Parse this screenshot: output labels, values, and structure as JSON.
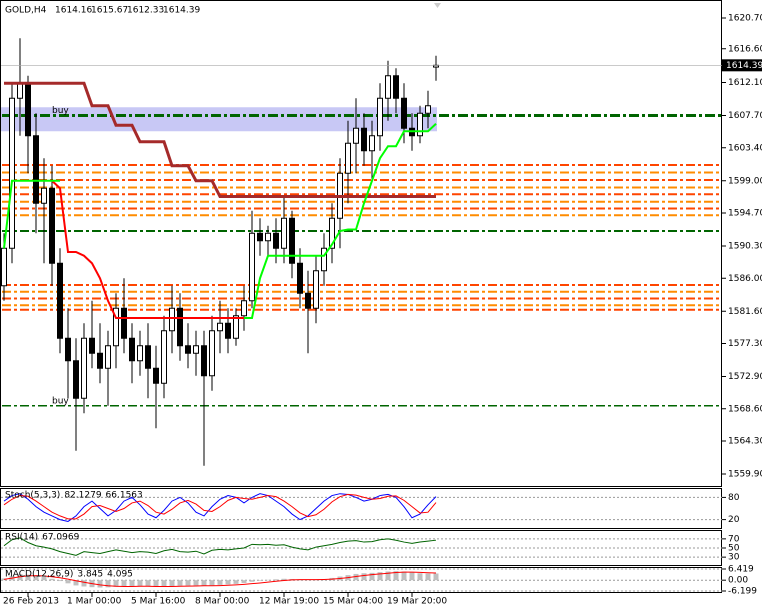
{
  "chart_data": [
    {
      "type": "candlestick",
      "symbol": "GOLD,H4",
      "categories": [
        null,
        null,
        null,
        "26 Feb 2013",
        null,
        null,
        null,
        null,
        null,
        null,
        null,
        "1 Mar 00:00",
        null,
        null,
        null,
        null,
        null,
        null,
        null,
        "5 Mar 16:00",
        null,
        null,
        null,
        null,
        null,
        null,
        null,
        "8 Mar 00:00",
        null,
        null,
        null,
        null,
        null,
        null,
        null,
        "12 Mar 19:00",
        null,
        null,
        null,
        null,
        null,
        null,
        null,
        "15 Mar 04:00",
        null,
        null,
        null,
        null,
        null,
        null,
        null,
        "19 Mar 20:00",
        null,
        null,
        null
      ],
      "open": [
        1585,
        1590,
        1610,
        1612,
        1605,
        1596,
        1598,
        1588,
        1578,
        1575,
        1570,
        1578,
        1576,
        1574,
        1577,
        1582,
        1578,
        1575,
        1577,
        1574,
        1572,
        1579,
        1582,
        1577,
        1576,
        1577,
        1573,
        1579,
        1580,
        1578,
        1581,
        1583,
        1592,
        1591,
        1592,
        1590,
        1594,
        1588,
        1584,
        1582,
        1587,
        1590,
        1594,
        1600,
        1604,
        1606,
        1603,
        1605,
        1610,
        1613,
        1610,
        1606,
        1605,
        1608,
        1614.16
      ],
      "high": [
        1592,
        1612,
        1618,
        1613,
        1608,
        1602,
        1601,
        1590,
        1582,
        1578,
        1580,
        1583,
        1580,
        1579,
        1584,
        1586,
        1580,
        1579,
        1580,
        1577,
        1581,
        1585,
        1584,
        1580,
        1579,
        1579,
        1581,
        1583,
        1582,
        1582,
        1585,
        1595,
        1594,
        1593,
        1594,
        1597,
        1595,
        1590,
        1587,
        1589,
        1592,
        1596,
        1602,
        1607,
        1610,
        1608,
        1607,
        1612,
        1615,
        1614,
        1612,
        1608,
        1609,
        1611,
        1615.67
      ],
      "low": [
        1583,
        1588,
        1605,
        1600,
        1592,
        1588,
        1585,
        1576,
        1570,
        1563,
        1568,
        1574,
        1572,
        1569,
        1574,
        1576,
        1572,
        1573,
        1570,
        1566,
        1570,
        1576,
        1575,
        1574,
        1573,
        1561,
        1571,
        1576,
        1576,
        1577,
        1579,
        1582,
        1589,
        1589,
        1588,
        1588,
        1586,
        1582,
        1576,
        1580,
        1585,
        1588,
        1590,
        1596,
        1600,
        1601,
        1599,
        1603,
        1607,
        1608,
        1604,
        1603,
        1604,
        1606,
        1612.33
      ],
      "close": [
        1590,
        1610,
        1612,
        1605,
        1596,
        1598,
        1588,
        1578,
        1575,
        1570,
        1578,
        1576,
        1574,
        1577,
        1582,
        1578,
        1575,
        1577,
        1574,
        1572,
        1579,
        1582,
        1577,
        1576,
        1577,
        1573,
        1579,
        1580,
        1578,
        1581,
        1583,
        1592,
        1591,
        1592,
        1590,
        1594,
        1588,
        1584,
        1582,
        1587,
        1590,
        1594,
        1600,
        1604,
        1606,
        1603,
        1605,
        1610,
        1613,
        1610,
        1606,
        1605,
        1608,
        1609,
        1614.39
      ],
      "series": [
        {
          "color": "#a52a2a",
          "values": [
            1612,
            1612,
            1612,
            1612,
            1612,
            1612,
            1612,
            1612,
            1612,
            1612,
            1612,
            1609,
            1609,
            1609,
            1606.4,
            1606.4,
            1606.4,
            1604.2,
            1604.2,
            1604.2,
            1604.2,
            1601,
            1601,
            1601,
            1599,
            1599,
            1599,
            1596.9,
            1596.9,
            1596.9,
            1596.9,
            1596.9,
            1596.9,
            1596.9,
            1596.9,
            1596.9,
            1596.9,
            1596.9,
            1596.9,
            1596.9,
            1596.9,
            1596.9,
            1596.9,
            1596.9,
            1596.9,
            1596.9,
            1596.9,
            1596.9,
            1596.9,
            1596.9,
            1596.9,
            1596.9,
            1596.9,
            1596.9,
            1596.9
          ]
        },
        {
          "color": "#ff0000",
          "values": [
            null,
            null,
            null,
            null,
            null,
            null,
            1599,
            1598,
            1589.5,
            1589.5,
            1589,
            1588,
            1586,
            1583,
            1580.7,
            1580.7,
            1580.7,
            1580.7,
            1580.7,
            1580.7,
            1580.7,
            1580.7,
            1580.7,
            1580.7,
            1580.7,
            1580.7,
            1580.7,
            1580.7,
            1580.7,
            1580.7,
            1580.7,
            1580.7,
            null,
            null,
            null,
            null,
            null,
            null,
            null,
            null,
            null,
            null,
            null,
            null,
            null,
            null,
            null,
            null,
            null,
            null,
            null,
            null,
            null,
            null,
            null
          ]
        },
        {
          "color": "#00ff00",
          "values": [
            1590,
            1599,
            1599,
            1599,
            1599,
            1599,
            1599,
            1599,
            null,
            null,
            null,
            null,
            null,
            null,
            null,
            null,
            null,
            null,
            null,
            null,
            null,
            null,
            null,
            null,
            null,
            null,
            null,
            null,
            null,
            null,
            1580.7,
            1580.7,
            1586,
            1589,
            1589,
            1589,
            1589,
            1589,
            1589,
            1589,
            1589,
            1590.5,
            1592.3,
            1592.5,
            1592.5,
            1596,
            1599,
            1602,
            1603.6,
            1603.6,
            1605.6,
            1605.6,
            1605.6,
            1605.6,
            1606.6
          ]
        }
      ],
      "bands": [
        {
          "from": 1605.6,
          "to": 1608.8,
          "color": "#c8c8f5"
        }
      ],
      "levels": [
        {
          "value": 1607.7,
          "color": "#006400",
          "width": 3
        },
        {
          "value": 1592.3,
          "color": "#006400",
          "width": 2
        },
        {
          "value": 1569.0,
          "color": "#006400",
          "width": 1.5
        },
        {
          "value": 1601.1,
          "color": "#ff4500",
          "width": 2
        },
        {
          "value": 1600.1,
          "color": "#ff8c00",
          "width": 2
        },
        {
          "value": 1599.1,
          "color": "#ff4500",
          "width": 2
        },
        {
          "value": 1598.1,
          "color": "#ff8c00",
          "width": 2
        },
        {
          "value": 1597.2,
          "color": "#ff4500",
          "width": 2
        },
        {
          "value": 1596.2,
          "color": "#ff8c00",
          "width": 2
        },
        {
          "value": 1595.3,
          "color": "#ff4500",
          "width": 2
        },
        {
          "value": 1594.4,
          "color": "#ff8c00",
          "width": 2
        },
        {
          "value": 1585.1,
          "color": "#ff4500",
          "width": 2
        },
        {
          "value": 1584.2,
          "color": "#ff8c00",
          "width": 2
        },
        {
          "value": 1583.3,
          "color": "#ff4500",
          "width": 2
        },
        {
          "value": 1582.4,
          "color": "#ff8c00",
          "width": 2
        },
        {
          "value": 1581.8,
          "color": "#ff4500",
          "width": 2
        }
      ],
      "annotations": [
        {
          "text": "buy",
          "value": 1607.7
        },
        {
          "text": "buy",
          "value": 1569.0
        }
      ],
      "ylim": [
        1559.9,
        1620.7
      ],
      "yticks": [
        {
          "value": 1620.7,
          "label": "1620.70"
        },
        {
          "value": 1616.6,
          "label": "1616.60"
        },
        {
          "value": 1612.1,
          "label": "1612.10"
        },
        {
          "value": 1607.7,
          "label": "1607.70"
        },
        {
          "value": 1603.4,
          "label": "1603.40"
        },
        {
          "value": 1599.0,
          "label": "1599.00"
        },
        {
          "value": 1594.7,
          "label": "1594.70"
        },
        {
          "value": 1590.3,
          "label": "1590.30"
        },
        {
          "value": 1586.0,
          "label": "1586.00"
        },
        {
          "value": 1581.6,
          "label": "1581.60"
        },
        {
          "value": 1577.3,
          "label": "1577.30"
        },
        {
          "value": 1572.9,
          "label": "1572.90"
        },
        {
          "value": 1568.6,
          "label": "1568.60"
        },
        {
          "value": 1564.3,
          "label": "1564.30"
        },
        {
          "value": 1559.9,
          "label": "1559.90"
        }
      ]
    },
    {
      "type": "line",
      "title": "Stoch(5,3,3)",
      "ylim": [
        0,
        100
      ],
      "yticks": [
        20,
        80
      ],
      "series": [
        {
          "color": "#0000ff",
          "values": [
            70,
            85,
            90,
            75,
            55,
            40,
            30,
            20,
            15,
            30,
            55,
            70,
            50,
            30,
            45,
            70,
            80,
            60,
            35,
            25,
            45,
            70,
            80,
            65,
            40,
            30,
            55,
            75,
            85,
            80,
            65,
            80,
            90,
            85,
            70,
            55,
            35,
            20,
            30,
            50,
            70,
            85,
            90,
            88,
            80,
            70,
            75,
            85,
            88,
            80,
            55,
            25,
            35,
            60,
            82.1279
          ]
        },
        {
          "color": "#ff0000",
          "values": [
            60,
            75,
            85,
            83,
            70,
            55,
            40,
            30,
            22,
            22,
            35,
            55,
            58,
            50,
            42,
            50,
            65,
            70,
            58,
            40,
            35,
            48,
            65,
            72,
            62,
            45,
            42,
            55,
            72,
            80,
            77,
            75,
            80,
            85,
            82,
            70,
            55,
            38,
            28,
            33,
            48,
            68,
            82,
            88,
            86,
            80,
            75,
            77,
            83,
            84,
            72,
            55,
            38,
            40,
            66.1563
          ]
        }
      ]
    },
    {
      "type": "line",
      "title": "RSI(14)",
      "ylim": [
        15,
        85
      ],
      "yticks": [
        30,
        50,
        70
      ],
      "series": [
        {
          "color": "#006400",
          "values": [
            55,
            68,
            72,
            62,
            55,
            52,
            48,
            42,
            38,
            34,
            42,
            40,
            38,
            42,
            46,
            43,
            40,
            42,
            41,
            38,
            44,
            47,
            42,
            41,
            43,
            37,
            45,
            47,
            46,
            48,
            50,
            58,
            57,
            58,
            56,
            57,
            52,
            48,
            46,
            52,
            55,
            58,
            62,
            65,
            66,
            63,
            64,
            68,
            70,
            67,
            63,
            60,
            63,
            65,
            67.0969
          ]
        }
      ]
    },
    {
      "type": "macd",
      "title": "MACD(12,26,9)",
      "ylim": [
        -6.199,
        6.419
      ],
      "yticks": [
        {
          "value": 6.419,
          "label": "6.419"
        },
        {
          "value": 0,
          "label": "0.00"
        },
        {
          "value": -6.199,
          "label": "-6.199"
        }
      ],
      "series": [
        {
          "color": "#c0c0c0",
          "values": [
            1,
            2.5,
            3.5,
            3.2,
            2.6,
            1.8,
            0.8,
            -0.5,
            -1.8,
            -3,
            -3.6,
            -4,
            -4.2,
            -4.1,
            -3.8,
            -3.5,
            -3.4,
            -3.3,
            -3.5,
            -3.8,
            -3.7,
            -3.4,
            -3.2,
            -3.1,
            -3,
            -3.2,
            -3,
            -2.7,
            -2.4,
            -2.1,
            -1.6,
            -0.9,
            -0.3,
            0.2,
            0.5,
            0.8,
            0.7,
            0.3,
            0,
            0.2,
            0.6,
            1.3,
            2.1,
            2.9,
            3.6,
            4,
            4.2,
            4.6,
            5,
            5.2,
            5,
            4.5,
            4,
            3.8,
            3.845
          ]
        },
        {
          "color": "#ff0000",
          "values": [
            0.5,
            1.2,
            2,
            2.5,
            2.6,
            2.4,
            2,
            1.4,
            0.6,
            -0.3,
            -1.2,
            -2,
            -2.7,
            -3.2,
            -3.5,
            -3.6,
            -3.6,
            -3.5,
            -3.5,
            -3.6,
            -3.6,
            -3.6,
            -3.5,
            -3.4,
            -3.3,
            -3.2,
            -3.2,
            -3.1,
            -2.9,
            -2.7,
            -2.4,
            -2,
            -1.6,
            -1.1,
            -0.6,
            -0.2,
            0.2,
            0.3,
            0.3,
            0.3,
            0.4,
            0.6,
            1,
            1.5,
            2.1,
            2.7,
            3.2,
            3.6,
            4,
            4.4,
            4.6,
            4.6,
            4.5,
            4.3,
            4.095
          ]
        }
      ]
    }
  ]
}
